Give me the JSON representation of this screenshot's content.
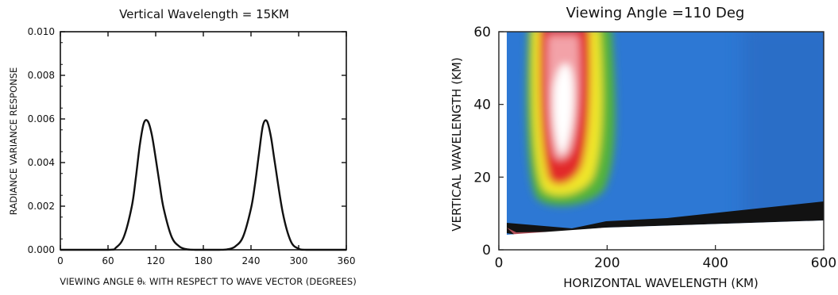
{
  "chart_data": [
    {
      "type": "line",
      "title": "Vertical Wavelength =  15KM",
      "xlabel": "VIEWING ANGLE θₖ WITH RESPECT TO WAVE VECTOR (DEGREES)",
      "ylabel": "RADIANCE VARIANCE RESPONSE",
      "xlim": [
        0,
        360
      ],
      "ylim": [
        0,
        0.01
      ],
      "xticks": [
        "0",
        "60",
        "120",
        "180",
        "240",
        "300",
        "360"
      ],
      "xtick_values": [
        0,
        60,
        120,
        180,
        240,
        300,
        360
      ],
      "yticks": [
        "0.000",
        "0.002",
        "0.004",
        "0.006",
        "0.008",
        "0.010"
      ],
      "ytick_values": [
        0,
        0.002,
        0.004,
        0.006,
        0.008,
        0.01
      ],
      "grid": false,
      "series": [
        {
          "x": [
            0,
            60,
            70,
            80,
            90,
            95,
            100,
            105,
            110,
            115,
            120,
            125,
            130,
            140,
            150,
            160,
            170,
            180,
            200,
            210,
            220,
            230,
            240,
            245,
            250,
            255,
            260,
            265,
            270,
            280,
            290,
            300,
            310,
            360
          ],
          "y": [
            0,
            0,
            0.0001,
            0.0006,
            0.002,
            0.0033,
            0.0048,
            0.0058,
            0.0059,
            0.0053,
            0.0042,
            0.003,
            0.0019,
            0.0006,
            0.00015,
            2e-05,
            0,
            0,
            0,
            2e-05,
            0.00015,
            0.0006,
            0.0019,
            0.003,
            0.0044,
            0.0057,
            0.0059,
            0.0052,
            0.004,
            0.0017,
            0.0004,
            5e-05,
            0,
            0
          ]
        }
      ]
    },
    {
      "type": "heatmap",
      "title": "Viewing Angle =110 Deg",
      "xlabel": "HORIZONTAL WAVELENGTH (KM)",
      "ylabel": "VERTICAL WAVELENGTH (KM)",
      "xlim": [
        0,
        600
      ],
      "ylim": [
        0,
        60
      ],
      "xticks": [
        "0",
        "200",
        "400",
        "600"
      ],
      "xtick_values": [
        0,
        200,
        400,
        600
      ],
      "yticks": [
        "0",
        "20",
        "40",
        "60"
      ],
      "ytick_values": [
        0,
        20,
        40,
        60
      ],
      "peak_region": {
        "x": 120,
        "y": 35
      },
      "bands": [
        {
          "level": "white",
          "color": "#ffffff"
        },
        {
          "level": "pink",
          "color": "#f4a0a0"
        },
        {
          "level": "red",
          "color": "#e02828"
        },
        {
          "level": "yellow",
          "color": "#f2e628"
        },
        {
          "level": "green",
          "color": "#56b830"
        },
        {
          "level": "blue",
          "color": "#2e7ad6"
        }
      ],
      "masked_region_color": "#101010"
    }
  ]
}
